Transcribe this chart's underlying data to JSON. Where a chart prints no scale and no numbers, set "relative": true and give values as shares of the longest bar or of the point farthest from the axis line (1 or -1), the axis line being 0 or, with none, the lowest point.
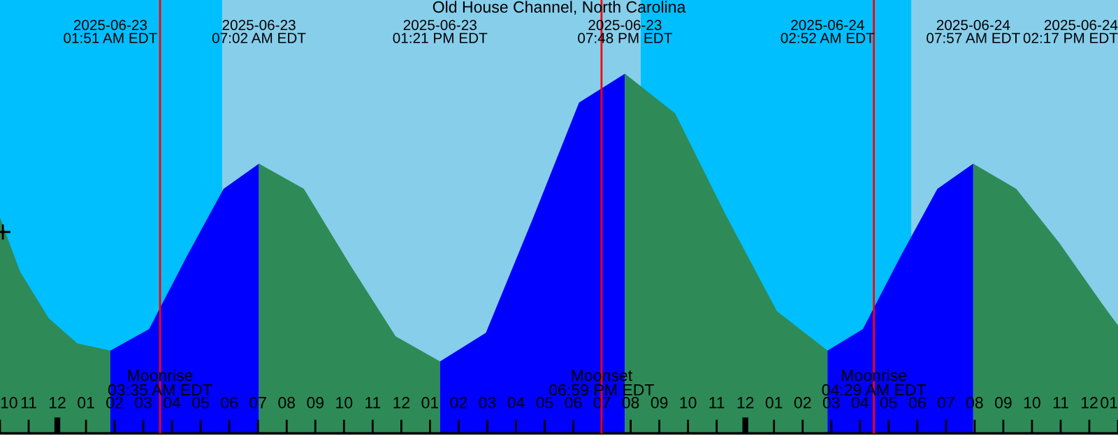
{
  "chart_data": {
    "type": "area",
    "title": "Old House Channel, North Carolina",
    "relative": true,
    "legend": false,
    "grid": false,
    "xlim": [
      "2025-06-22T22:00",
      "2025-06-24T13:00"
    ],
    "xticks": [
      {
        "value": "2025-06-22T22:00",
        "label": "10"
      },
      {
        "value": "2025-06-22T23:00",
        "label": "11"
      },
      {
        "value": "2025-06-23T00:00",
        "label": "12"
      },
      {
        "value": "2025-06-23T01:00",
        "label": "01"
      },
      {
        "value": "2025-06-23T02:00",
        "label": "02"
      },
      {
        "value": "2025-06-23T03:00",
        "label": "03"
      },
      {
        "value": "2025-06-23T04:00",
        "label": "04"
      },
      {
        "value": "2025-06-23T05:00",
        "label": "05"
      },
      {
        "value": "2025-06-23T06:00",
        "label": "06"
      },
      {
        "value": "2025-06-23T07:00",
        "label": "07"
      },
      {
        "value": "2025-06-23T08:00",
        "label": "08"
      },
      {
        "value": "2025-06-23T09:00",
        "label": "09"
      },
      {
        "value": "2025-06-23T10:00",
        "label": "10"
      },
      {
        "value": "2025-06-23T11:00",
        "label": "11"
      },
      {
        "value": "2025-06-23T12:00",
        "label": "12"
      },
      {
        "value": "2025-06-23T13:00",
        "label": "01"
      },
      {
        "value": "2025-06-23T14:00",
        "label": "02"
      },
      {
        "value": "2025-06-23T15:00",
        "label": "03"
      },
      {
        "value": "2025-06-23T16:00",
        "label": "04"
      },
      {
        "value": "2025-06-23T17:00",
        "label": "05"
      },
      {
        "value": "2025-06-23T18:00",
        "label": "06"
      },
      {
        "value": "2025-06-23T19:00",
        "label": "07"
      },
      {
        "value": "2025-06-23T20:00",
        "label": "08"
      },
      {
        "value": "2025-06-23T21:00",
        "label": "09"
      },
      {
        "value": "2025-06-23T22:00",
        "label": "10"
      },
      {
        "value": "2025-06-23T23:00",
        "label": "11"
      },
      {
        "value": "2025-06-24T00:00",
        "label": "12"
      },
      {
        "value": "2025-06-24T01:00",
        "label": "01"
      },
      {
        "value": "2025-06-24T02:00",
        "label": "02"
      },
      {
        "value": "2025-06-24T03:00",
        "label": "03"
      },
      {
        "value": "2025-06-24T04:00",
        "label": "04"
      },
      {
        "value": "2025-06-24T05:00",
        "label": "05"
      },
      {
        "value": "2025-06-24T06:00",
        "label": "06"
      },
      {
        "value": "2025-06-24T07:00",
        "label": "07"
      },
      {
        "value": "2025-06-24T08:00",
        "label": "08"
      },
      {
        "value": "2025-06-24T09:00",
        "label": "09"
      },
      {
        "value": "2025-06-24T10:00",
        "label": "10"
      },
      {
        "value": "2025-06-24T11:00",
        "label": "11"
      },
      {
        "value": "2025-06-24T12:00",
        "label": "12"
      },
      {
        "value": "2025-06-24T13:00",
        "label": "01"
      }
    ],
    "bands": [
      {
        "axis": "x",
        "from": "2025-06-22T22:00",
        "to": "2025-06-23T05:45",
        "color": "#00bfff"
      },
      {
        "axis": "x",
        "from": "2025-06-23T05:45",
        "to": "2025-06-23T20:21",
        "color": "#87ceeb"
      },
      {
        "axis": "x",
        "from": "2025-06-23T20:21",
        "to": "2025-06-24T05:48",
        "color": "#00bfff"
      },
      {
        "axis": "x",
        "from": "2025-06-24T05:48",
        "to": "2025-06-24T13:00",
        "color": "#87ceeb"
      }
    ],
    "series": [
      {
        "color": "#2e8b57",
        "x": [
          "2025-06-22T22:00",
          "2025-06-22T22:42",
          "2025-06-22T23:42",
          "2025-06-23T00:42",
          "2025-06-23T01:51"
        ],
        "values": [
          0.6,
          0.45,
          0.32,
          0.25,
          0.23
        ]
      },
      {
        "color": "#0000ff",
        "x": [
          "2025-06-23T01:51",
          "2025-06-23T03:12",
          "2025-06-23T04:30",
          "2025-06-23T05:48",
          "2025-06-23T07:02"
        ],
        "values": [
          0.23,
          0.29,
          0.49,
          0.68,
          0.75
        ]
      },
      {
        "color": "#2e8b57",
        "x": [
          "2025-06-23T07:02",
          "2025-06-23T08:36",
          "2025-06-23T10:12",
          "2025-06-23T11:48",
          "2025-06-23T13:21"
        ],
        "values": [
          0.75,
          0.68,
          0.47,
          0.27,
          0.2
        ]
      },
      {
        "color": "#0000ff",
        "x": [
          "2025-06-23T13:21",
          "2025-06-23T14:57",
          "2025-06-23T16:36",
          "2025-06-23T18:12",
          "2025-06-23T19:48"
        ],
        "values": [
          0.2,
          0.28,
          0.6,
          0.92,
          1.0
        ]
      },
      {
        "color": "#2e8b57",
        "x": [
          "2025-06-23T19:48",
          "2025-06-23T21:33",
          "2025-06-23T23:18",
          "2025-06-24T01:06",
          "2025-06-24T02:52"
        ],
        "values": [
          1.0,
          0.89,
          0.61,
          0.34,
          0.23
        ]
      },
      {
        "color": "#0000ff",
        "x": [
          "2025-06-24T02:52",
          "2025-06-24T04:06",
          "2025-06-24T05:24",
          "2025-06-24T06:42",
          "2025-06-24T07:57"
        ],
        "values": [
          0.23,
          0.29,
          0.49,
          0.68,
          0.75
        ]
      },
      {
        "color": "#2e8b57",
        "x": [
          "2025-06-24T07:57",
          "2025-06-24T09:27",
          "2025-06-24T10:57",
          "2025-06-24T12:27",
          "2025-06-24T13:00"
        ],
        "values": [
          0.75,
          0.68,
          0.53,
          0.36,
          0.3
        ]
      },
      {
        "type": "scatter",
        "marker": "cross",
        "color": "#000000",
        "x": [
          "2025-06-22T22:06"
        ],
        "values": [
          0.56
        ]
      }
    ],
    "ref_lines": [
      {
        "axis": "x",
        "value": "2025-06-23T03:35",
        "label": "Moonrise\n03:35 AM EDT",
        "color": "#ff0000"
      },
      {
        "axis": "x",
        "value": "2025-06-23T18:59",
        "label": "Moonset\n06:59 PM EDT",
        "color": "#ff0000"
      },
      {
        "axis": "x",
        "value": "2025-06-24T04:29",
        "label": "Moonrise\n04:29 AM EDT",
        "color": "#ff0000"
      }
    ],
    "annotations": [
      "2025-06-23\n01:51 AM EDT",
      "2025-06-23\n07:02 AM EDT",
      "2025-06-23\n01:21 PM EDT",
      "2025-06-23\n07:48 PM EDT",
      "2025-06-24\n02:52 AM EDT",
      "2025-06-24\n07:57 AM EDT",
      "2025-06-24\n02:17 PM EDT"
    ]
  }
}
